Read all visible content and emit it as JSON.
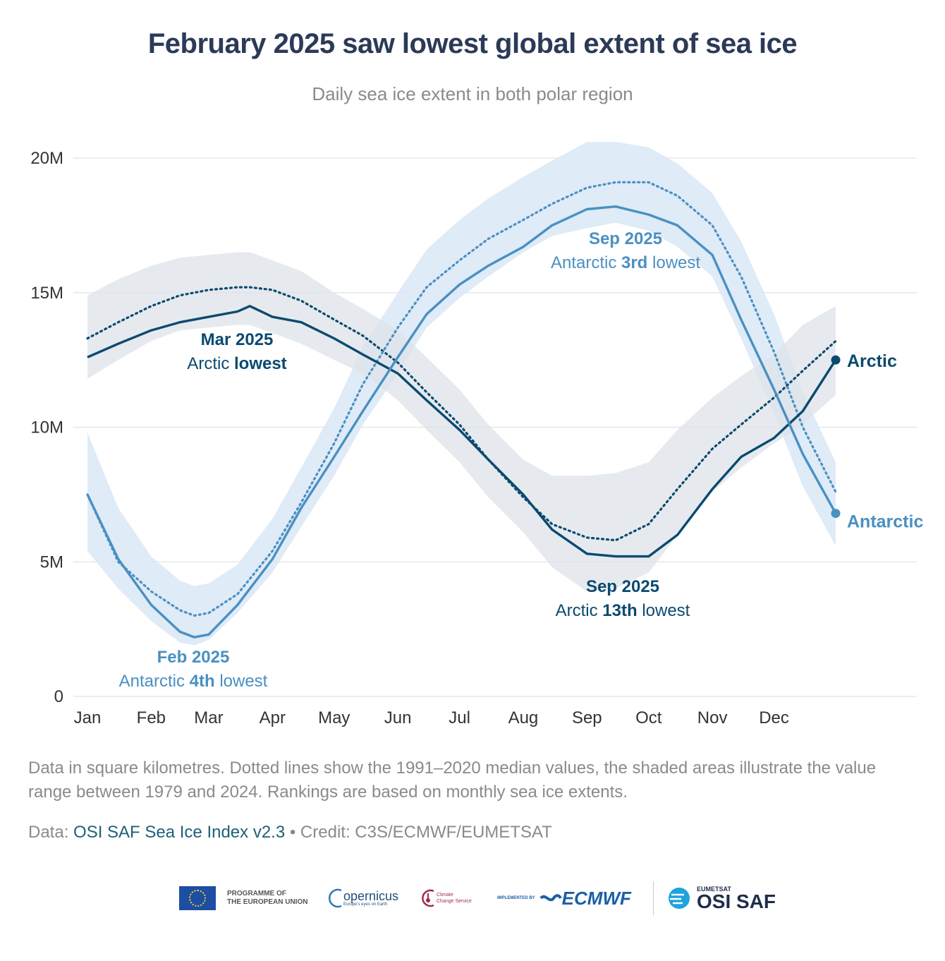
{
  "title": "February 2025 saw lowest global extent of sea ice",
  "subtitle": "Daily sea ice extent in both polar region",
  "note": "Data in square kilometres. Dotted lines show the 1991–2020 median values, the shaded areas illustrate the value range between 1979 and 2024. Rankings are based on monthly sea ice extents.",
  "source": {
    "prefix": "Data: ",
    "link": "OSI SAF Sea Ice Index v2.3",
    "suffix": " • Credit: C3S/ECMWF/EUMETSAT"
  },
  "logos": {
    "eu_line1": "PROGRAMME OF",
    "eu_line2": "THE EUROPEAN UNION",
    "copernicus": "opernicus",
    "copernicus_tag": "Europe's eyes on Earth",
    "c3s_line1": "Climate",
    "c3s_line2": "Change Service",
    "implemented": "IMPLEMENTED BY",
    "ecmwf": "ECMWF",
    "eumetsat": "EUMETSAT",
    "osisaf": "OSI SAF"
  },
  "colors": {
    "arctic": "#0b4a6f",
    "antarctic": "#4a90c2",
    "arctic_band": "#dde3e9",
    "antarctic_band": "#dbe9f6",
    "grid": "#e2e2e2"
  },
  "chart_data": {
    "type": "line",
    "x_unit": "day of year",
    "ylim": [
      0,
      20000000
    ],
    "yticks": [
      {
        "value": 0,
        "label": "0"
      },
      {
        "value": 5000000,
        "label": "5M"
      },
      {
        "value": 10000000,
        "label": "10M"
      },
      {
        "value": 15000000,
        "label": "15M"
      },
      {
        "value": 20000000,
        "label": "20M"
      }
    ],
    "xticks": [
      {
        "day": 1,
        "label": "Jan"
      },
      {
        "day": 32,
        "label": "Feb"
      },
      {
        "day": 60,
        "label": "Mar"
      },
      {
        "day": 91,
        "label": "Apr"
      },
      {
        "day": 121,
        "label": "May"
      },
      {
        "day": 152,
        "label": "Jun"
      },
      {
        "day": 182,
        "label": "Jul"
      },
      {
        "day": 213,
        "label": "Aug"
      },
      {
        "day": 244,
        "label": "Sep"
      },
      {
        "day": 274,
        "label": "Oct"
      },
      {
        "day": 305,
        "label": "Nov"
      },
      {
        "day": 335,
        "label": "Dec"
      }
    ],
    "grid": true,
    "series": [
      {
        "name": "Arctic",
        "color": "#0b4a6f",
        "days": [
          1,
          16,
          32,
          46,
          60,
          74,
          80,
          91,
          105,
          121,
          135,
          152,
          166,
          182,
          196,
          213,
          227,
          244,
          258,
          274,
          288,
          305,
          319,
          335,
          349,
          365
        ],
        "values": [
          12.6,
          13.1,
          13.6,
          13.9,
          14.1,
          14.3,
          14.5,
          14.1,
          13.9,
          13.3,
          12.7,
          12.0,
          11.0,
          9.9,
          8.8,
          7.5,
          6.2,
          5.3,
          5.2,
          5.2,
          6.0,
          7.7,
          8.9,
          9.6,
          10.6,
          12.5
        ],
        "median_values": [
          13.3,
          13.9,
          14.5,
          14.9,
          15.1,
          15.2,
          15.2,
          15.1,
          14.7,
          14.0,
          13.4,
          12.4,
          11.3,
          10.1,
          8.8,
          7.4,
          6.4,
          5.9,
          5.8,
          6.4,
          7.7,
          9.2,
          10.1,
          11.1,
          12.1,
          13.2
        ],
        "range_low": [
          11.8,
          12.5,
          13.2,
          13.6,
          13.7,
          13.8,
          13.8,
          13.5,
          13.1,
          12.5,
          12.0,
          11.0,
          9.9,
          8.7,
          7.4,
          6.1,
          4.8,
          3.9,
          4.0,
          4.6,
          6.0,
          7.6,
          8.5,
          9.4,
          10.1,
          11.2
        ],
        "range_high": [
          14.9,
          15.5,
          16.0,
          16.3,
          16.4,
          16.5,
          16.5,
          16.2,
          15.8,
          15.0,
          14.4,
          13.6,
          12.6,
          11.4,
          10.1,
          8.8,
          8.2,
          8.2,
          8.3,
          8.7,
          9.9,
          11.1,
          11.9,
          12.7,
          13.8,
          14.5
        ],
        "end_label": "Arctic"
      },
      {
        "name": "Antarctic",
        "color": "#4a90c2",
        "days": [
          1,
          16,
          32,
          46,
          53,
          60,
          74,
          91,
          105,
          121,
          135,
          152,
          166,
          182,
          196,
          213,
          227,
          244,
          258,
          274,
          288,
          305,
          319,
          335,
          349,
          365
        ],
        "values": [
          7.5,
          5.1,
          3.4,
          2.4,
          2.2,
          2.3,
          3.4,
          5.1,
          7.0,
          8.9,
          10.6,
          12.6,
          14.2,
          15.3,
          16.0,
          16.7,
          17.5,
          18.1,
          18.2,
          17.9,
          17.5,
          16.4,
          14.0,
          11.4,
          9.0,
          6.8
        ],
        "median_values": [
          7.5,
          5.0,
          3.9,
          3.2,
          3.0,
          3.1,
          3.8,
          5.4,
          7.2,
          9.4,
          11.6,
          13.7,
          15.2,
          16.2,
          17.0,
          17.7,
          18.3,
          18.9,
          19.1,
          19.1,
          18.6,
          17.5,
          15.6,
          12.8,
          10.0,
          7.6
        ],
        "range_low": [
          5.4,
          4.0,
          2.8,
          2.0,
          1.9,
          2.1,
          3.1,
          4.6,
          6.3,
          8.2,
          10.1,
          12.0,
          13.7,
          14.8,
          15.6,
          16.5,
          17.1,
          17.4,
          17.6,
          17.3,
          16.7,
          15.6,
          13.3,
          10.5,
          7.8,
          5.6
        ],
        "range_high": [
          9.8,
          7.0,
          5.2,
          4.3,
          4.1,
          4.2,
          4.9,
          6.6,
          8.5,
          10.7,
          13.0,
          15.0,
          16.6,
          17.7,
          18.5,
          19.3,
          19.9,
          20.6,
          20.6,
          20.4,
          19.8,
          18.7,
          16.9,
          14.2,
          11.3,
          8.7
        ],
        "end_label": "Antarctic"
      }
    ],
    "annotations": [
      {
        "id": "mar-arctic",
        "line1": "Mar 2025",
        "line2_pre": "Arctic ",
        "line2_bold": "lowest",
        "line2_post": "",
        "series": "Arctic"
      },
      {
        "id": "feb-antarctic",
        "line1": "Feb 2025",
        "line2_pre": "Antarctic ",
        "line2_bold": "4th",
        "line2_post": " lowest",
        "series": "Antarctic"
      },
      {
        "id": "sep-antarctic",
        "line1": "Sep 2025",
        "line2_pre": "Antarctic ",
        "line2_bold": "3rd",
        "line2_post": " lowest",
        "series": "Antarctic"
      },
      {
        "id": "sep-arctic",
        "line1": "Sep 2025",
        "line2_pre": "Arctic ",
        "line2_bold": "13th",
        "line2_post": " lowest",
        "series": "Arctic"
      }
    ]
  }
}
